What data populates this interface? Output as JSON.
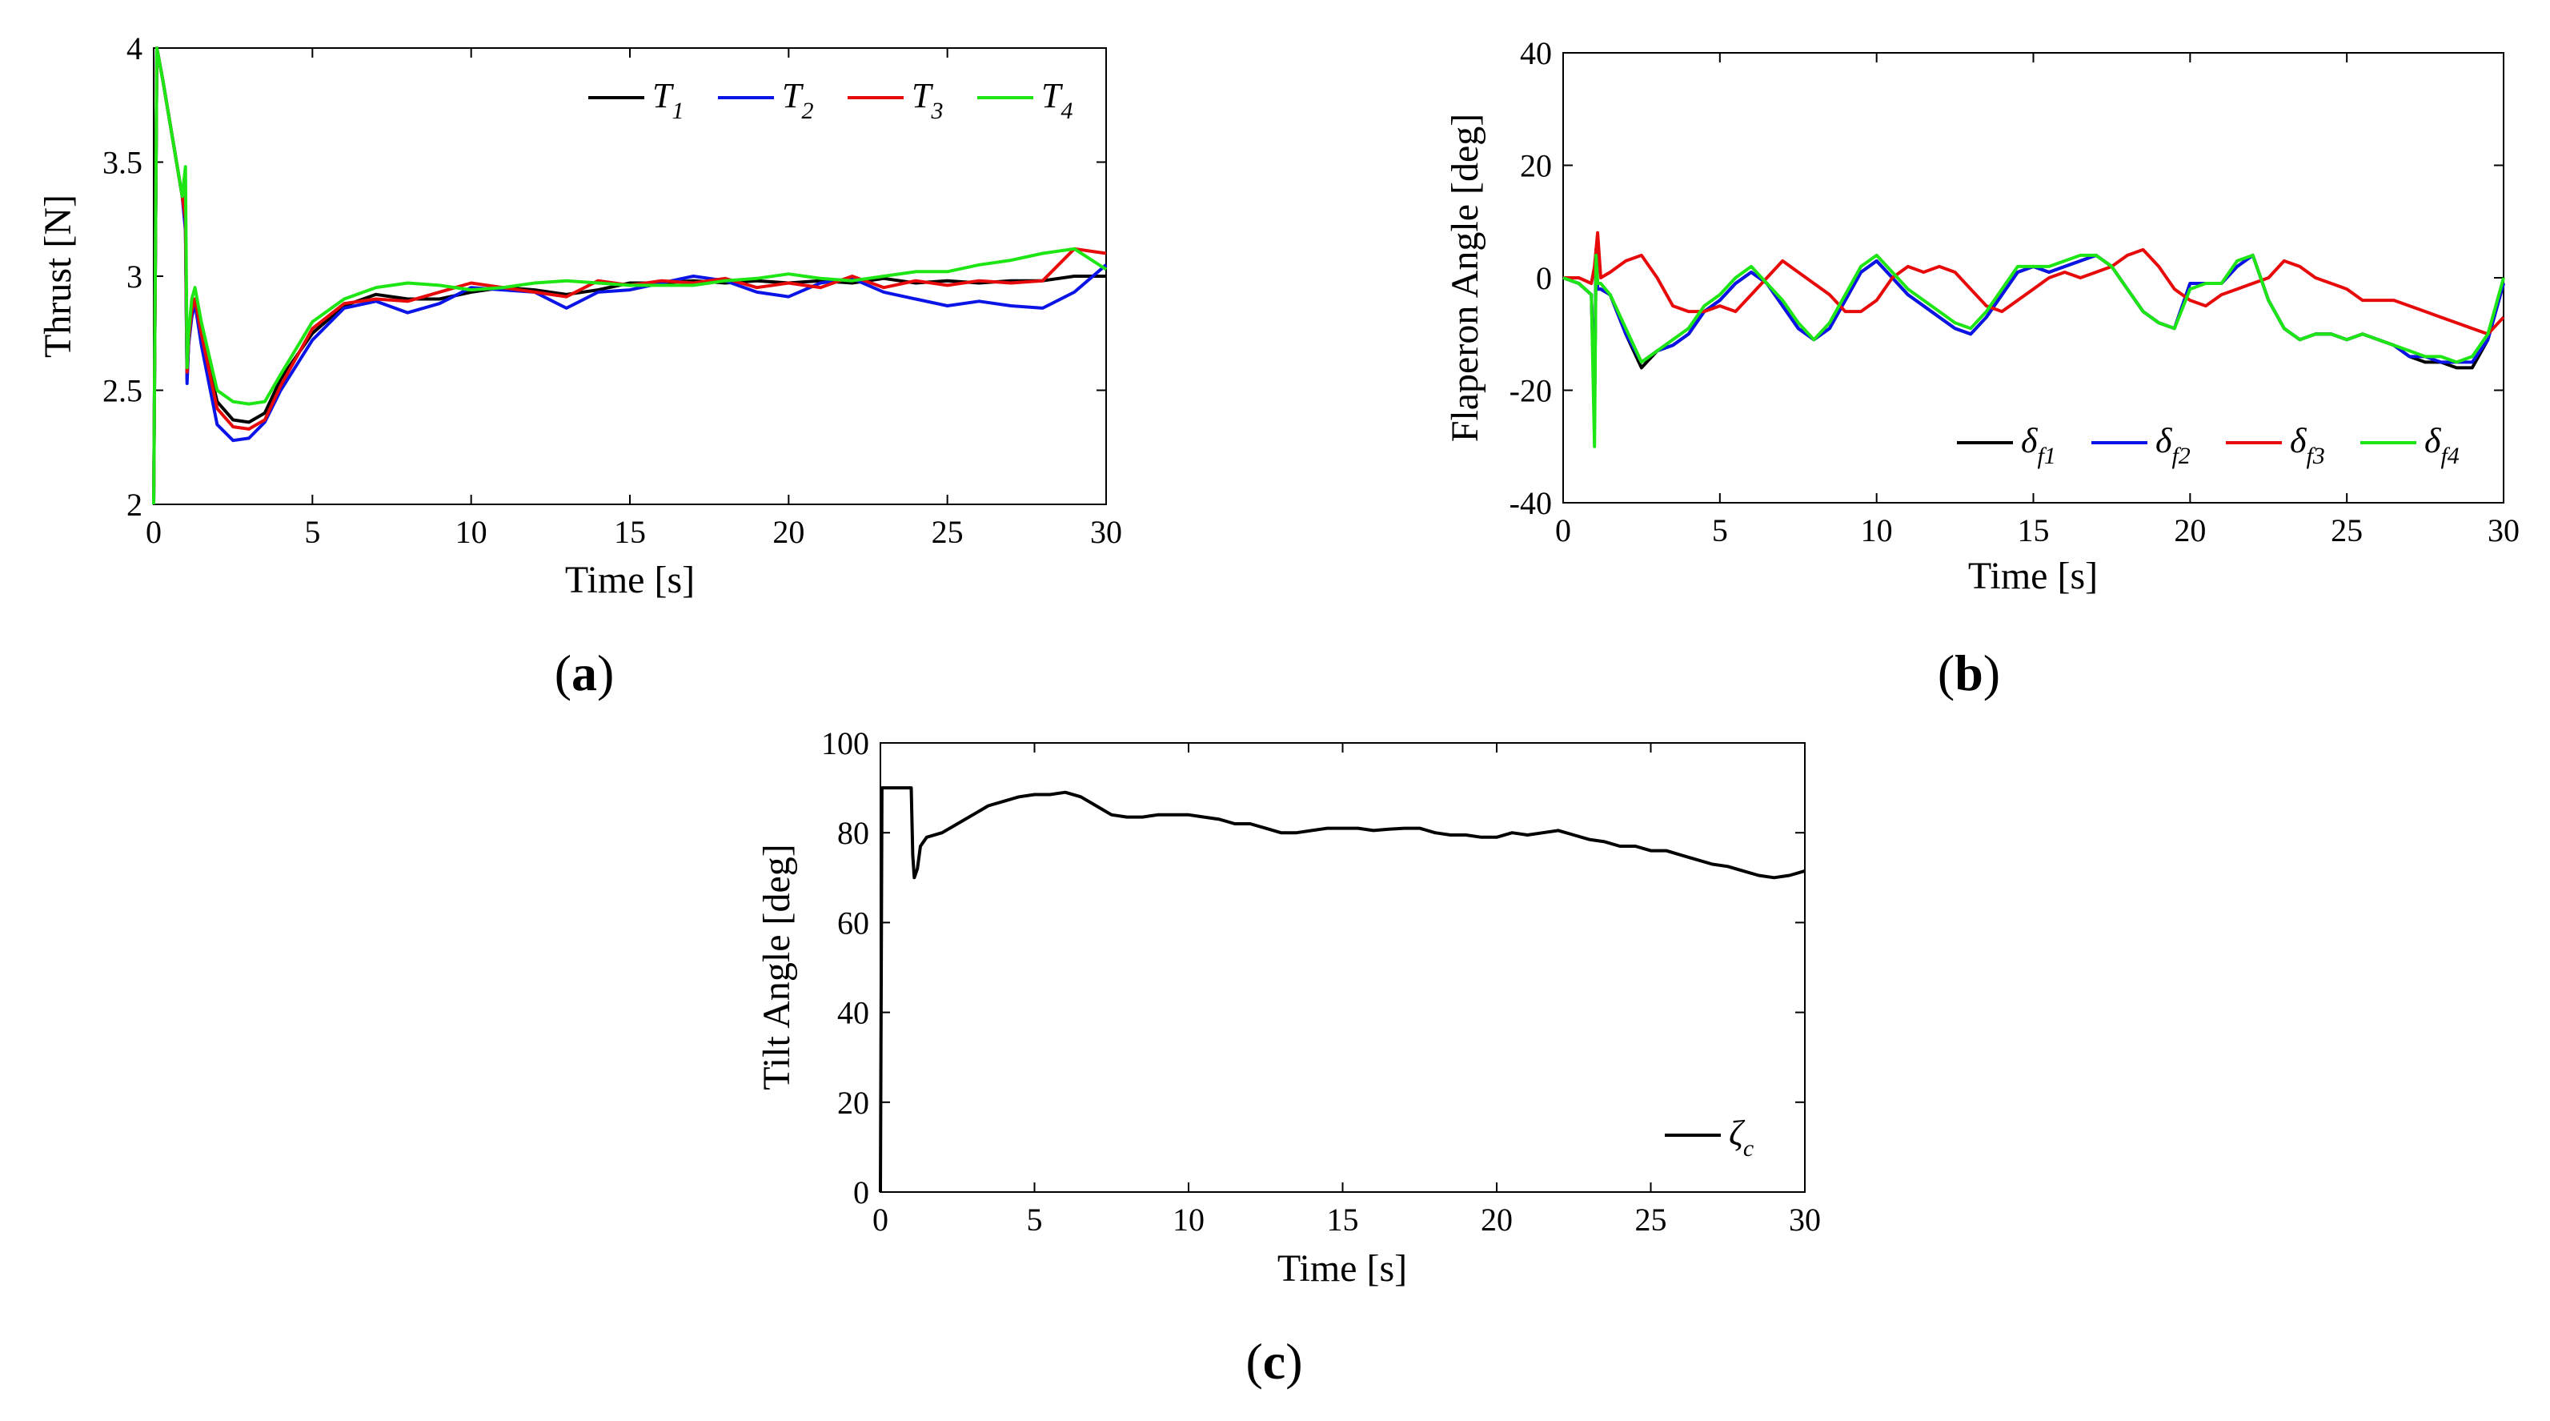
{
  "chart_data": [
    {
      "panel": "(a)",
      "panel_letter": "a",
      "type": "line",
      "title": "",
      "xlabel": "Time [s]",
      "ylabel": "Thrust [N]",
      "xlim": [
        0,
        30
      ],
      "ylim": [
        2,
        4
      ],
      "xticks": [
        "0",
        "5",
        "10",
        "15",
        "20",
        "25",
        "30"
      ],
      "yticks": [
        "2",
        "2.5",
        "3",
        "3.5",
        "4"
      ],
      "legend_position": "top-right",
      "series": [
        {
          "name": "T1",
          "symbol": "T",
          "sub": "1",
          "color": "#000000",
          "x": [
            0,
            0.1,
            0.3,
            0.6,
            0.9,
            1.0,
            1.05,
            1.1,
            1.2,
            1.3,
            1.5,
            2,
            2.5,
            3,
            3.5,
            4,
            5,
            6,
            7,
            8,
            9,
            10,
            11,
            12,
            13,
            14,
            15,
            16,
            17,
            18,
            19,
            20,
            21,
            22,
            23,
            24,
            25,
            26,
            27,
            28,
            29,
            30
          ],
          "y": [
            2,
            4,
            3.85,
            3.6,
            3.35,
            3.25,
            2.55,
            2.7,
            2.85,
            2.9,
            2.75,
            2.45,
            2.37,
            2.36,
            2.4,
            2.55,
            2.75,
            2.87,
            2.92,
            2.9,
            2.9,
            2.93,
            2.95,
            2.94,
            2.92,
            2.94,
            2.97,
            2.97,
            2.98,
            2.97,
            2.98,
            2.97,
            2.98,
            2.97,
            2.99,
            2.97,
            2.98,
            2.97,
            2.98,
            2.98,
            3.0,
            3.0
          ]
        },
        {
          "name": "T2",
          "symbol": "T",
          "sub": "2",
          "color": "#0a14e6",
          "x": [
            0,
            0.1,
            0.3,
            0.6,
            0.9,
            1.0,
            1.05,
            1.1,
            1.2,
            1.3,
            1.5,
            2,
            2.5,
            3,
            3.5,
            4,
            5,
            6,
            7,
            8,
            9,
            10,
            11,
            12,
            13,
            14,
            15,
            16,
            17,
            18,
            19,
            20,
            21,
            22,
            23,
            24,
            25,
            26,
            27,
            28,
            29,
            30
          ],
          "y": [
            2,
            4,
            3.85,
            3.6,
            3.35,
            3.2,
            2.53,
            2.7,
            2.82,
            2.88,
            2.7,
            2.35,
            2.28,
            2.29,
            2.36,
            2.5,
            2.72,
            2.86,
            2.89,
            2.84,
            2.88,
            2.95,
            2.94,
            2.93,
            2.86,
            2.93,
            2.94,
            2.97,
            3.0,
            2.98,
            2.93,
            2.91,
            2.97,
            2.99,
            2.93,
            2.9,
            2.87,
            2.89,
            2.87,
            2.86,
            2.93,
            3.05
          ]
        },
        {
          "name": "T3",
          "symbol": "T",
          "sub": "3",
          "color": "#e60a0a",
          "x": [
            0,
            0.1,
            0.3,
            0.6,
            0.9,
            1.0,
            1.05,
            1.1,
            1.2,
            1.3,
            1.5,
            2,
            2.5,
            3,
            3.5,
            4,
            5,
            6,
            7,
            8,
            9,
            10,
            11,
            12,
            13,
            14,
            15,
            16,
            17,
            18,
            19,
            20,
            21,
            22,
            23,
            24,
            25,
            26,
            27,
            28,
            29,
            30
          ],
          "y": [
            2,
            4,
            3.85,
            3.6,
            3.35,
            3.25,
            2.58,
            2.72,
            2.85,
            2.9,
            2.75,
            2.42,
            2.34,
            2.33,
            2.37,
            2.52,
            2.77,
            2.88,
            2.9,
            2.89,
            2.93,
            2.97,
            2.95,
            2.93,
            2.91,
            2.98,
            2.96,
            2.98,
            2.97,
            2.99,
            2.95,
            2.97,
            2.95,
            3.0,
            2.95,
            2.98,
            2.96,
            2.98,
            2.97,
            2.98,
            3.12,
            3.1
          ]
        },
        {
          "name": "T4",
          "symbol": "T",
          "sub": "4",
          "color": "#1ee614",
          "x": [
            0,
            0.1,
            0.3,
            0.6,
            0.9,
            1.0,
            1.05,
            1.1,
            1.2,
            1.3,
            1.5,
            2,
            2.5,
            3,
            3.5,
            4,
            5,
            6,
            7,
            8,
            9,
            10,
            11,
            12,
            13,
            14,
            15,
            16,
            17,
            18,
            19,
            20,
            21,
            22,
            23,
            24,
            25,
            26,
            27,
            28,
            29,
            30
          ],
          "y": [
            2,
            4,
            3.85,
            3.6,
            3.35,
            3.48,
            2.6,
            2.75,
            2.9,
            2.95,
            2.8,
            2.5,
            2.45,
            2.44,
            2.45,
            2.57,
            2.8,
            2.9,
            2.95,
            2.97,
            2.96,
            2.94,
            2.95,
            2.97,
            2.98,
            2.97,
            2.96,
            2.96,
            2.96,
            2.98,
            2.99,
            3.01,
            2.99,
            2.98,
            3.0,
            3.02,
            3.02,
            3.05,
            3.07,
            3.1,
            3.12,
            3.03
          ]
        }
      ]
    },
    {
      "panel": "(b)",
      "panel_letter": "b",
      "type": "line",
      "title": "",
      "xlabel": "Time [s]",
      "ylabel": "Flaperon Angle [deg]",
      "xlim": [
        0,
        30
      ],
      "ylim": [
        -40,
        40
      ],
      "xticks": [
        "0",
        "5",
        "10",
        "15",
        "20",
        "25",
        "30"
      ],
      "yticks": [
        "-40",
        "-20",
        "0",
        "20",
        "40"
      ],
      "legend_position": "bottom-right",
      "series": [
        {
          "name": "δf1",
          "symbol": "δ",
          "sub": "f1",
          "color": "#000000",
          "x": [
            0,
            0.5,
            0.9,
            1.0,
            1.05,
            1.1,
            1.2,
            1.5,
            2,
            2.5,
            3,
            3.5,
            4,
            4.5,
            5,
            5.5,
            6,
            6.5,
            7,
            7.5,
            8,
            8.5,
            9,
            9.5,
            10,
            10.5,
            11,
            11.5,
            12,
            12.5,
            13,
            13.5,
            14,
            14.5,
            15,
            15.5,
            16,
            16.5,
            17,
            17.5,
            18,
            18.5,
            19,
            19.5,
            20,
            20.5,
            21,
            21.5,
            22,
            22.5,
            23,
            23.5,
            24,
            24.5,
            25,
            25.5,
            26,
            26.5,
            27,
            27.5,
            28,
            28.5,
            29,
            29.5,
            30
          ],
          "y": [
            0,
            -1,
            -3,
            -25,
            5,
            -2,
            -2,
            -3,
            -10,
            -16,
            -13,
            -12,
            -10,
            -6,
            -4,
            -1,
            1,
            -1,
            -5,
            -9,
            -11,
            -9,
            -4,
            1,
            3,
            0,
            -3,
            -5,
            -7,
            -9,
            -10,
            -7,
            -3,
            1,
            2,
            1,
            2,
            3,
            4,
            2,
            -2,
            -6,
            -8,
            -9,
            -1,
            -1,
            -1,
            2,
            4,
            -4,
            -9,
            -11,
            -10,
            -10,
            -11,
            -10,
            -11,
            -12,
            -14,
            -15,
            -15,
            -16,
            -16,
            -11,
            -1
          ]
        },
        {
          "name": "δf2",
          "symbol": "δ",
          "sub": "f2",
          "color": "#0a14e6",
          "x": [
            0,
            0.5,
            0.9,
            1.0,
            1.05,
            1.1,
            1.2,
            1.5,
            2,
            2.5,
            3,
            3.5,
            4,
            4.5,
            5,
            5.5,
            6,
            6.5,
            7,
            7.5,
            8,
            8.5,
            9,
            9.5,
            10,
            10.5,
            11,
            11.5,
            12,
            12.5,
            13,
            13.5,
            14,
            14.5,
            15,
            15.5,
            16,
            16.5,
            17,
            17.5,
            18,
            18.5,
            19,
            19.5,
            20,
            20.5,
            21,
            21.5,
            22,
            22.5,
            23,
            23.5,
            24,
            24.5,
            25,
            25.5,
            26,
            26.5,
            27,
            27.5,
            28,
            28.5,
            29,
            29.5,
            30
          ],
          "y": [
            0,
            -1,
            -3,
            -24,
            5,
            -2,
            -2,
            -3,
            -10,
            -15,
            -13,
            -12,
            -10,
            -6,
            -4,
            -1,
            1,
            -1,
            -5,
            -9,
            -11,
            -9,
            -4,
            1,
            3,
            0,
            -3,
            -5,
            -7,
            -9,
            -10,
            -7,
            -3,
            1,
            2,
            1,
            2,
            3,
            4,
            2,
            -2,
            -6,
            -8,
            -9,
            -1,
            -1,
            -1,
            2,
            4,
            -4,
            -9,
            -11,
            -10,
            -10,
            -11,
            -10,
            -11,
            -12,
            -14,
            -14,
            -15,
            -15,
            -15,
            -11,
            -1
          ]
        },
        {
          "name": "δf3",
          "symbol": "δ",
          "sub": "f3",
          "color": "#e60a0a",
          "x": [
            0,
            0.5,
            0.9,
            1.0,
            1.1,
            1.2,
            1.5,
            2,
            2.5,
            3,
            3.5,
            4,
            4.5,
            5,
            5.5,
            6,
            6.5,
            7,
            7.5,
            8,
            8.5,
            9,
            9.5,
            10,
            10.5,
            11,
            11.5,
            12,
            12.5,
            13,
            13.5,
            14,
            14.5,
            15,
            15.5,
            16,
            16.5,
            17,
            17.5,
            18,
            18.5,
            19,
            19.5,
            20,
            20.5,
            21,
            21.5,
            22,
            22.5,
            23,
            23.5,
            24,
            24.5,
            25,
            25.5,
            26,
            26.5,
            27,
            27.5,
            28,
            28.5,
            29,
            29.5,
            30
          ],
          "y": [
            0,
            0,
            -1,
            2,
            8,
            0,
            1,
            3,
            4,
            0,
            -5,
            -6,
            -6,
            -5,
            -6,
            -3,
            0,
            3,
            1,
            -1,
            -3,
            -6,
            -6,
            -4,
            0,
            2,
            1,
            2,
            1,
            -2,
            -5,
            -6,
            -4,
            -2,
            0,
            1,
            0,
            1,
            2,
            4,
            5,
            2,
            -2,
            -4,
            -5,
            -3,
            -2,
            -1,
            0,
            3,
            2,
            0,
            -1,
            -2,
            -4,
            -4,
            -4,
            -5,
            -6,
            -7,
            -8,
            -9,
            -10,
            -7
          ]
        },
        {
          "name": "δf4",
          "symbol": "δ",
          "sub": "f4",
          "color": "#1ee614",
          "x": [
            0,
            0.5,
            0.9,
            1.0,
            1.05,
            1.1,
            1.2,
            1.5,
            2,
            2.5,
            3,
            3.5,
            4,
            4.5,
            5,
            5.5,
            6,
            6.5,
            7,
            7.5,
            8,
            8.5,
            9,
            9.5,
            10,
            10.5,
            11,
            11.5,
            12,
            12.5,
            13,
            13.5,
            14,
            14.5,
            15,
            15.5,
            16,
            16.5,
            17,
            17.5,
            18,
            18.5,
            19,
            19.5,
            20,
            20.5,
            21,
            21.5,
            22,
            22.5,
            23,
            23.5,
            24,
            24.5,
            25,
            25.5,
            26,
            26.5,
            27,
            27.5,
            28,
            28.5,
            29,
            29.5,
            30
          ],
          "y": [
            0,
            -1,
            -3,
            -30,
            4,
            -1,
            -1,
            -3,
            -9,
            -15,
            -13,
            -11,
            -9,
            -5,
            -3,
            0,
            2,
            -1,
            -4,
            -8,
            -11,
            -8,
            -3,
            2,
            4,
            1,
            -2,
            -4,
            -6,
            -8,
            -9,
            -6,
            -2,
            2,
            2,
            2,
            3,
            4,
            4,
            2,
            -2,
            -6,
            -8,
            -9,
            -2,
            -1,
            -1,
            3,
            4,
            -4,
            -9,
            -11,
            -10,
            -10,
            -11,
            -10,
            -11,
            -12,
            -13,
            -14,
            -14,
            -15,
            -14,
            -10,
            0
          ]
        }
      ]
    },
    {
      "panel": "(c)",
      "panel_letter": "c",
      "type": "line",
      "title": "",
      "xlabel": "Time [s]",
      "ylabel": "Tilt Angle [deg]",
      "xlim": [
        0,
        30
      ],
      "ylim": [
        0,
        100
      ],
      "xticks": [
        "0",
        "5",
        "10",
        "15",
        "20",
        "25",
        "30"
      ],
      "yticks": [
        "0",
        "20",
        "40",
        "60",
        "80",
        "100"
      ],
      "legend_position": "bottom-right",
      "series": [
        {
          "name": "ζc",
          "symbol": "ζ",
          "sub": "c",
          "color": "#000000",
          "x": [
            0,
            0.05,
            1.0,
            1.05,
            1.1,
            1.2,
            1.3,
            1.5,
            2,
            2.5,
            3,
            3.5,
            4,
            4.5,
            5,
            5.5,
            6,
            6.5,
            7,
            7.5,
            8,
            8.5,
            9,
            9.5,
            10,
            10.5,
            11,
            11.5,
            12,
            12.5,
            13,
            13.5,
            14,
            14.5,
            15,
            15.5,
            16,
            16.5,
            17,
            17.5,
            18,
            18.5,
            19,
            19.5,
            20,
            20.5,
            21,
            21.5,
            22,
            22.5,
            23,
            23.5,
            24,
            24.5,
            25,
            25.5,
            26,
            26.5,
            27,
            27.5,
            28,
            28.5,
            29,
            29.5,
            30
          ],
          "y": [
            0,
            90,
            90,
            75,
            70,
            72,
            77,
            79,
            80,
            82,
            84,
            86,
            87,
            88,
            88.5,
            88.5,
            89,
            88,
            86,
            84,
            83.5,
            83.5,
            84,
            84,
            84,
            83.5,
            83,
            82,
            82,
            81,
            80,
            80,
            80.5,
            81,
            81,
            81,
            80.5,
            80.8,
            81,
            81,
            80,
            79.5,
            79.5,
            79,
            79,
            80,
            79.5,
            80,
            80.5,
            79.5,
            78.5,
            78,
            77,
            77,
            76,
            76,
            75,
            74,
            73,
            72.5,
            71.5,
            70.5,
            70,
            70.5,
            71.5
          ]
        }
      ]
    }
  ]
}
